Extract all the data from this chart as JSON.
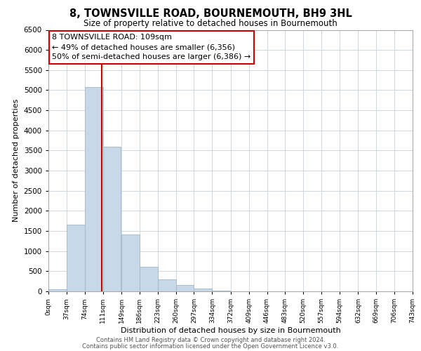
{
  "title": "8, TOWNSVILLE ROAD, BOURNEMOUTH, BH9 3HL",
  "subtitle": "Size of property relative to detached houses in Bournemouth",
  "xlabel": "Distribution of detached houses by size in Bournemouth",
  "ylabel": "Number of detached properties",
  "bar_left_edges": [
    0,
    37,
    74,
    111,
    149,
    186,
    223,
    260,
    297,
    334,
    372,
    409,
    446,
    483,
    520,
    557,
    594,
    632,
    669,
    706
  ],
  "bar_heights": [
    50,
    1650,
    5080,
    3590,
    1420,
    610,
    300,
    150,
    70,
    20,
    0,
    0,
    0,
    0,
    0,
    0,
    0,
    0,
    0,
    0
  ],
  "bin_width": 37,
  "bar_color": "#c8d8e8",
  "bar_edgecolor": "#a0b8cc",
  "vline_x": 109,
  "vline_color": "#cc0000",
  "ylim": [
    0,
    6500
  ],
  "yticks": [
    0,
    500,
    1000,
    1500,
    2000,
    2500,
    3000,
    3500,
    4000,
    4500,
    5000,
    5500,
    6000,
    6500
  ],
  "xtick_labels": [
    "0sqm",
    "37sqm",
    "74sqm",
    "111sqm",
    "149sqm",
    "186sqm",
    "223sqm",
    "260sqm",
    "297sqm",
    "334sqm",
    "372sqm",
    "409sqm",
    "446sqm",
    "483sqm",
    "520sqm",
    "557sqm",
    "594sqm",
    "632sqm",
    "669sqm",
    "706sqm",
    "743sqm"
  ],
  "annotation_title": "8 TOWNSVILLE ROAD: 109sqm",
  "annotation_line1": "← 49% of detached houses are smaller (6,356)",
  "annotation_line2": "50% of semi-detached houses are larger (6,386) →",
  "annotation_box_color": "#ffffff",
  "annotation_border_color": "#cc0000",
  "footer_line1": "Contains HM Land Registry data © Crown copyright and database right 2024.",
  "footer_line2": "Contains public sector information licensed under the Open Government Licence v3.0.",
  "background_color": "#ffffff",
  "grid_color": "#d0d8e0"
}
